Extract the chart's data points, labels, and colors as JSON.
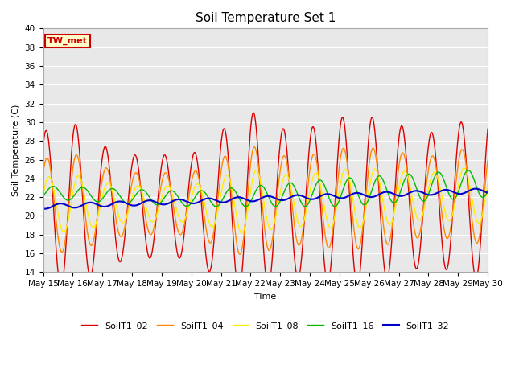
{
  "title": "Soil Temperature Set 1",
  "xlabel": "Time",
  "ylabel": "Soil Temperature (C)",
  "ylim": [
    14,
    40
  ],
  "background_color": "#e8e8e8",
  "figure_color": "#ffffff",
  "label_box_text": "TW_met",
  "label_box_bg": "#ffffcc",
  "label_box_edge": "#cc0000",
  "series": {
    "SoilT1_02": {
      "color": "#dd0000",
      "linewidth": 1.0
    },
    "SoilT1_04": {
      "color": "#ff8800",
      "linewidth": 1.0
    },
    "SoilT1_08": {
      "color": "#ffee00",
      "linewidth": 1.0
    },
    "SoilT1_16": {
      "color": "#00bb00",
      "linewidth": 1.0
    },
    "SoilT1_32": {
      "color": "#0000cc",
      "linewidth": 1.5
    }
  },
  "xtick_labels": [
    "May 15",
    "May 16",
    "May 17",
    "May 18",
    "May 19",
    "May 20",
    "May 21",
    "May 22",
    "May 23",
    "May 24",
    "May 25",
    "May 26",
    "May 27",
    "May 28",
    "May 29",
    "May 30"
  ],
  "grid_color": "#ffffff",
  "title_fontsize": 11,
  "axis_fontsize": 8,
  "tick_fontsize": 7.5,
  "legend_fontsize": 8
}
